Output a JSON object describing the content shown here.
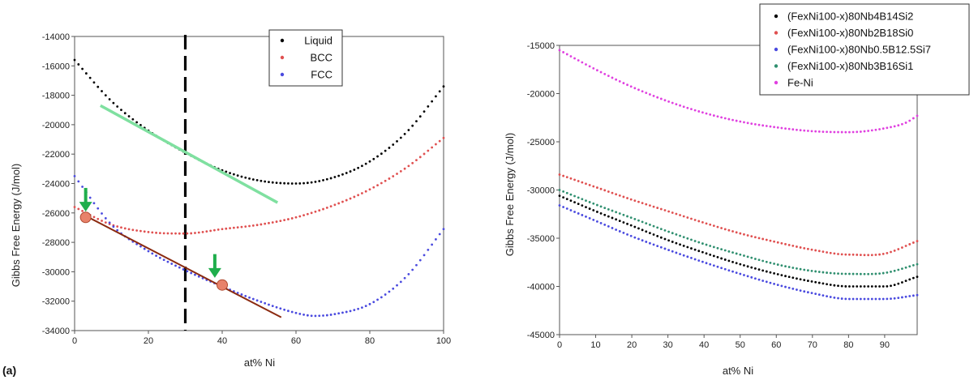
{
  "chart_data": [
    {
      "type": "scatter",
      "panel_label": "(a)",
      "xlabel": "at% Ni",
      "ylabel": "Gibbs Free Energy (J/mol)",
      "xlim": [
        0,
        100
      ],
      "ylim": [
        -34000,
        -14000
      ],
      "xticks": [
        "0",
        "20",
        "40",
        "60",
        "80",
        "100"
      ],
      "yticks": [
        "-34000",
        "-32000",
        "-30000",
        "-28000",
        "-26000",
        "-24000",
        "-22000",
        "-20000",
        "-18000",
        "-16000",
        "-14000"
      ],
      "legend_position": "top-right",
      "series": [
        {
          "name": "Liquid",
          "color": "#000000",
          "x": [
            0,
            10,
            20,
            30,
            40,
            50,
            60,
            70,
            80,
            90,
            100
          ],
          "y": [
            -15600,
            -18400,
            -20400,
            -21900,
            -23100,
            -23800,
            -24000,
            -23600,
            -22500,
            -20500,
            -17400
          ]
        },
        {
          "name": "BCC",
          "color": "#e05050",
          "x": [
            0,
            10,
            20,
            30,
            40,
            50,
            60,
            70,
            80,
            90,
            100
          ],
          "y": [
            -25600,
            -26800,
            -27300,
            -27400,
            -27100,
            -26800,
            -26300,
            -25500,
            -24400,
            -22900,
            -20900
          ]
        },
        {
          "name": "FCC",
          "color": "#4a4adf",
          "x": [
            0,
            10,
            20,
            30,
            40,
            50,
            60,
            65,
            70,
            80,
            90,
            100
          ],
          "y": [
            -23500,
            -26800,
            -28600,
            -29900,
            -31000,
            -32000,
            -32800,
            -33000,
            -32900,
            -32200,
            -30300,
            -27100
          ]
        }
      ],
      "annotations": {
        "vertical_line_x": 30,
        "green_line": {
          "x": [
            7,
            55
          ],
          "y": [
            -18700,
            -25300
          ],
          "color": "#7fe0a0"
        },
        "brown_line": {
          "x": [
            3,
            56
          ],
          "y": [
            -26200,
            -33100
          ],
          "color": "#8b2a10"
        },
        "points": [
          {
            "x": 3,
            "y": -26300
          },
          {
            "x": 40,
            "y": -30900
          }
        ],
        "arrows": [
          {
            "x": 3,
            "y_from": -24300,
            "y_to": -25800
          },
          {
            "x": 38,
            "y_from": -28800,
            "y_to": -30300
          }
        ]
      }
    },
    {
      "type": "scatter",
      "xlabel": "at% Ni",
      "ylabel": "Gibbs Free Energy (J/mol)",
      "xlim": [
        0,
        99
      ],
      "ylim": [
        -45000,
        -15000
      ],
      "xticks": [
        "0",
        "10",
        "20",
        "30",
        "40",
        "50",
        "60",
        "70",
        "80",
        "90"
      ],
      "yticks": [
        "-45000",
        "-40000",
        "-35000",
        "-30000",
        "-25000",
        "-20000",
        "-15000"
      ],
      "legend_position": "top-left",
      "series": [
        {
          "name": "(FexNi100-x)80Nb4B14Si2",
          "color": "#000000",
          "x": [
            0,
            10,
            20,
            30,
            40,
            50,
            60,
            70,
            80,
            90,
            99
          ],
          "y": [
            -30600,
            -32200,
            -33700,
            -35200,
            -36500,
            -37700,
            -38700,
            -39500,
            -40000,
            -40000,
            -39000
          ]
        },
        {
          "name": "(FexNi100-x)80Nb2B18Si0",
          "color": "#e05050",
          "x": [
            0,
            10,
            20,
            30,
            40,
            50,
            60,
            70,
            80,
            90,
            99
          ],
          "y": [
            -28400,
            -29700,
            -31000,
            -32200,
            -33400,
            -34500,
            -35400,
            -36200,
            -36700,
            -36600,
            -35300
          ]
        },
        {
          "name": "(FexNi100-x)80Nb0.5B12.5Si7",
          "color": "#4a4adf",
          "x": [
            0,
            10,
            20,
            30,
            40,
            50,
            60,
            70,
            80,
            90,
            99
          ],
          "y": [
            -31600,
            -33200,
            -34800,
            -36200,
            -37500,
            -38700,
            -39800,
            -40700,
            -41300,
            -41300,
            -40900
          ]
        },
        {
          "name": "(FexNi100-x)80Nb3B16Si1",
          "color": "#2f8f6f",
          "x": [
            0,
            10,
            20,
            30,
            40,
            50,
            60,
            70,
            80,
            90,
            99
          ],
          "y": [
            -30000,
            -31500,
            -32900,
            -34300,
            -35600,
            -36700,
            -37700,
            -38400,
            -38700,
            -38600,
            -37700
          ]
        },
        {
          "name": "Fe-Ni",
          "color": "#e040e0",
          "x": [
            0,
            10,
            20,
            30,
            40,
            50,
            60,
            70,
            80,
            90,
            96,
            99
          ],
          "y": [
            -15500,
            -17500,
            -19300,
            -20800,
            -22000,
            -22900,
            -23500,
            -23900,
            -24000,
            -23600,
            -23000,
            -22300
          ]
        }
      ]
    }
  ]
}
